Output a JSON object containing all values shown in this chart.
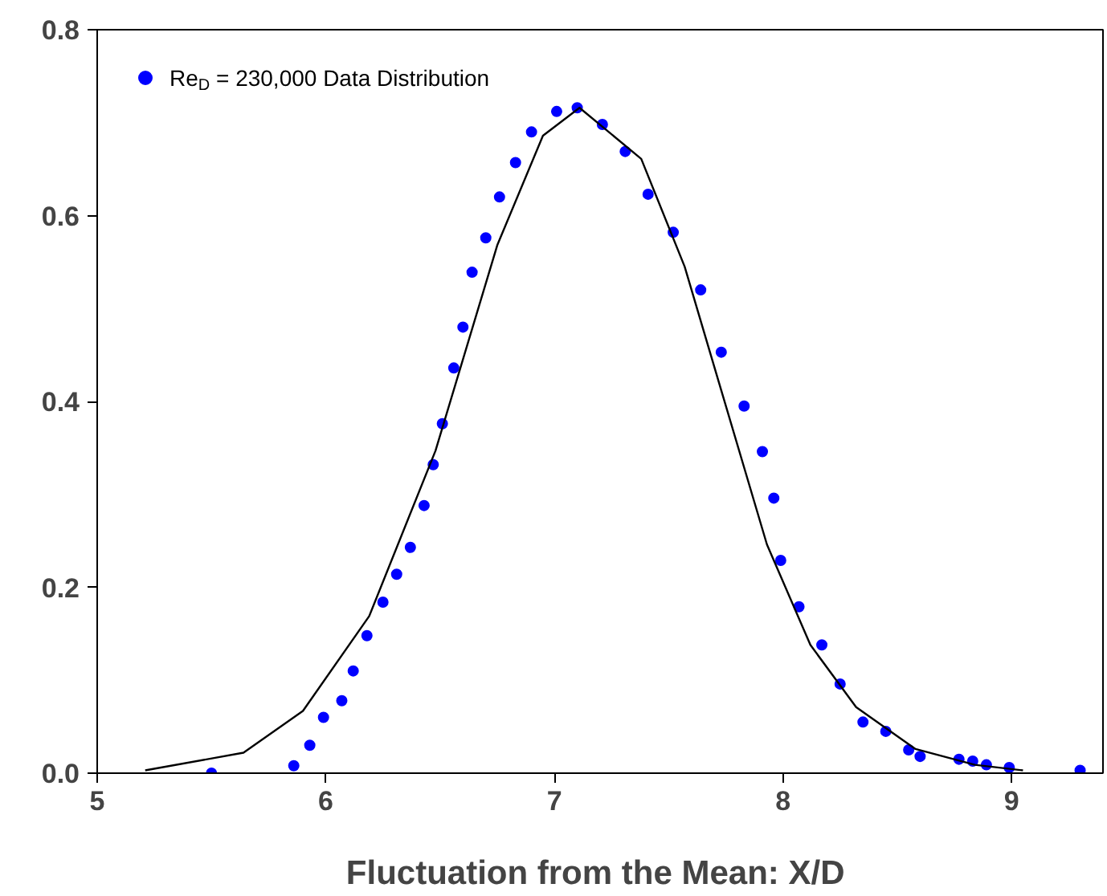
{
  "chart_data": {
    "type": "scatter",
    "xlabel": "Fluctuation from the Mean:  X/D",
    "xlim": [
      5,
      9.4
    ],
    "ylim": [
      0,
      0.8
    ],
    "xticks": [
      5,
      6,
      7,
      8,
      9
    ],
    "yticks": [
      {
        "value": 0,
        "label": "0.0"
      },
      {
        "value": 0.2,
        "label": "0.2"
      },
      {
        "value": 0.4,
        "label": "0.4"
      },
      {
        "value": 0.6,
        "label": "0.6"
      },
      {
        "value": 0.8,
        "label": "0.8"
      }
    ],
    "grid": false,
    "legend": "top left",
    "marker": "circle",
    "series": [
      {
        "name": "Re$_{D}$ = 230,000 Data Distribution",
        "color": "#0000ff",
        "x": [
          5.5,
          5.86,
          5.93,
          5.99,
          6.07,
          6.12,
          6.18,
          6.25,
          6.31,
          6.37,
          6.43,
          6.47,
          6.51,
          6.56,
          6.6,
          6.64,
          6.7,
          6.76,
          6.83,
          6.9,
          7.01,
          7.1,
          7.21,
          7.31,
          7.41,
          7.52,
          7.64,
          7.73,
          7.83,
          7.91,
          7.96,
          7.99,
          8.07,
          8.17,
          8.25,
          8.35,
          8.45,
          8.55,
          8.6,
          8.77,
          8.83,
          8.89,
          8.99,
          9.3
        ],
        "values": [
          0.0,
          0.008,
          0.03,
          0.06,
          0.078,
          0.11,
          0.148,
          0.184,
          0.214,
          0.243,
          0.288,
          0.332,
          0.376,
          0.436,
          0.48,
          0.539,
          0.576,
          0.62,
          0.657,
          0.69,
          0.712,
          0.716,
          0.698,
          0.669,
          0.623,
          0.582,
          0.52,
          0.453,
          0.395,
          0.346,
          0.296,
          0.229,
          0.179,
          0.138,
          0.096,
          0.055,
          0.045,
          0.025,
          0.018,
          0.015,
          0.013,
          0.009,
          0.006,
          0.003
        ]
      },
      {
        "type": "line",
        "color": "#000000",
        "marker": "none",
        "x": [
          5.21,
          5.64,
          5.9,
          6.19,
          6.48,
          6.75,
          6.95,
          7.11,
          7.38,
          7.57,
          7.73,
          7.93,
          8.12,
          8.32,
          8.58,
          8.84,
          9.05
        ],
        "values": [
          0.003,
          0.022,
          0.067,
          0.169,
          0.347,
          0.568,
          0.686,
          0.716,
          0.661,
          0.545,
          0.412,
          0.246,
          0.138,
          0.071,
          0.026,
          0.009,
          0.003
        ]
      }
    ]
  }
}
